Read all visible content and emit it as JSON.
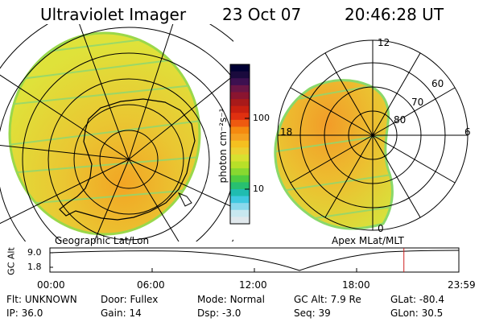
{
  "header": {
    "instrument": "Ultraviolet Imager",
    "date": "23 Oct 07",
    "time": "20:46:28 UT"
  },
  "left_map": {
    "caption": "Geographic Lat/Lon"
  },
  "right_map": {
    "caption": "Apex MLat/MLT",
    "mlt_labels": [
      "12",
      "18",
      "6",
      "0"
    ],
    "lat_labels": [
      "60",
      "70",
      "80"
    ]
  },
  "colorbar": {
    "unit_label": "photon cm⁻²s⁻¹",
    "ticks": [
      "100",
      "10"
    ],
    "colors": [
      "#000033",
      "#1a0a3d",
      "#3d1050",
      "#6a1545",
      "#8a1530",
      "#a81a1a",
      "#c82010",
      "#e03010",
      "#ee5a10",
      "#f58a10",
      "#f5a020",
      "#f5c020",
      "#ecd030",
      "#d8e030",
      "#b8e028",
      "#88d830",
      "#50cc40",
      "#28c070",
      "#20bcb0",
      "#40c8e0",
      "#8ad8ec",
      "#c8e8f0",
      "#e0e8ec"
    ]
  },
  "timeline": {
    "axis_label": "GC Alt",
    "y_ticks": [
      "9.0",
      "1.8"
    ],
    "x_ticks": [
      "00:00",
      "06:00",
      "12:00",
      "18:00",
      "23:59"
    ],
    "current_fraction": 0.8656
  },
  "info": {
    "row1": [
      {
        "label": "Flt:",
        "value": "UNKNOWN"
      },
      {
        "label": "Door:",
        "value": "Fullex"
      },
      {
        "label": "Mode:",
        "value": "Normal"
      },
      {
        "label": "GC Alt:",
        "value": "7.9 Re"
      },
      {
        "label": "GLat:",
        "value": "-80.4"
      }
    ],
    "row2": [
      {
        "label": "IP:",
        "value": "36.0"
      },
      {
        "label": "Gain:",
        "value": "14"
      },
      {
        "label": "Dsp:",
        "value": "-3.0"
      },
      {
        "label": "Seq:",
        "value": "39"
      },
      {
        "label": "GLon:",
        "value": "30.5"
      }
    ]
  }
}
